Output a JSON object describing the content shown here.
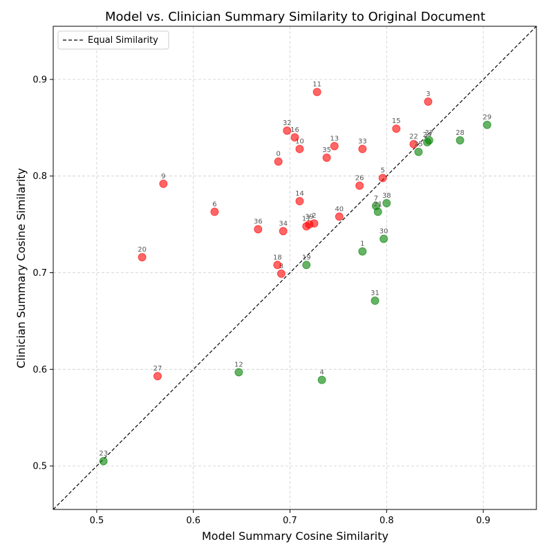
{
  "chart_data": {
    "type": "scatter",
    "title": "Model vs. Clinician Summary Similarity to Original Document",
    "xlabel": "Model Summary Cosine Similarity",
    "ylabel": "Clinician Summary Cosine Similarity",
    "xlim": [
      0.455,
      0.955
    ],
    "ylim": [
      0.455,
      0.955
    ],
    "xticks": [
      "0.5",
      "0.6",
      "0.7",
      "0.8",
      "0.9"
    ],
    "yticks": [
      "0.5",
      "0.6",
      "0.7",
      "0.8",
      "0.9"
    ],
    "grid": true,
    "legend": {
      "position": "top-left",
      "entries": [
        "Equal Similarity"
      ]
    },
    "reference_line": {
      "name": "Equal Similarity",
      "style": "dashed",
      "color": "#000000"
    },
    "colors": {
      "clinician_higher": "#ff0000",
      "model_higher": "#008000"
    },
    "points": [
      {
        "label": "0",
        "x": 0.688,
        "y": 0.815,
        "group": "red"
      },
      {
        "label": "1",
        "x": 0.775,
        "y": 0.722,
        "group": "green"
      },
      {
        "label": "2",
        "x": 0.725,
        "y": 0.751,
        "group": "red"
      },
      {
        "label": "3",
        "x": 0.843,
        "y": 0.877,
        "group": "red"
      },
      {
        "label": "4",
        "x": 0.733,
        "y": 0.589,
        "group": "green"
      },
      {
        "label": "5",
        "x": 0.796,
        "y": 0.798,
        "group": "red"
      },
      {
        "label": "6",
        "x": 0.622,
        "y": 0.763,
        "group": "red"
      },
      {
        "label": "7",
        "x": 0.789,
        "y": 0.769,
        "group": "green"
      },
      {
        "label": "8",
        "x": 0.691,
        "y": 0.699,
        "group": "red"
      },
      {
        "label": "9",
        "x": 0.569,
        "y": 0.792,
        "group": "red"
      },
      {
        "label": "10",
        "x": 0.71,
        "y": 0.828,
        "group": "red"
      },
      {
        "label": "11",
        "x": 0.728,
        "y": 0.887,
        "group": "red"
      },
      {
        "label": "12",
        "x": 0.647,
        "y": 0.597,
        "group": "green"
      },
      {
        "label": "13",
        "x": 0.746,
        "y": 0.831,
        "group": "red"
      },
      {
        "label": "14",
        "x": 0.71,
        "y": 0.774,
        "group": "red"
      },
      {
        "label": "15",
        "x": 0.81,
        "y": 0.849,
        "group": "red"
      },
      {
        "label": "16",
        "x": 0.705,
        "y": 0.84,
        "group": "red"
      },
      {
        "label": "17",
        "x": 0.717,
        "y": 0.748,
        "group": "red"
      },
      {
        "label": "18",
        "x": 0.687,
        "y": 0.708,
        "group": "red"
      },
      {
        "label": "19",
        "x": 0.717,
        "y": 0.708,
        "group": "green"
      },
      {
        "label": "20",
        "x": 0.547,
        "y": 0.716,
        "group": "red"
      },
      {
        "label": "21",
        "x": 0.791,
        "y": 0.763,
        "group": "green"
      },
      {
        "label": "22",
        "x": 0.828,
        "y": 0.833,
        "group": "red"
      },
      {
        "label": "23",
        "x": 0.507,
        "y": 0.505,
        "group": "green"
      },
      {
        "label": "24",
        "x": 0.842,
        "y": 0.835,
        "group": "green"
      },
      {
        "label": "25",
        "x": 0.833,
        "y": 0.825,
        "group": "green"
      },
      {
        "label": "26",
        "x": 0.772,
        "y": 0.79,
        "group": "red"
      },
      {
        "label": "27",
        "x": 0.563,
        "y": 0.593,
        "group": "red"
      },
      {
        "label": "28",
        "x": 0.876,
        "y": 0.837,
        "group": "green"
      },
      {
        "label": "29",
        "x": 0.904,
        "y": 0.853,
        "group": "green"
      },
      {
        "label": "30",
        "x": 0.797,
        "y": 0.735,
        "group": "green"
      },
      {
        "label": "31",
        "x": 0.788,
        "y": 0.671,
        "group": "green"
      },
      {
        "label": "32",
        "x": 0.697,
        "y": 0.847,
        "group": "red"
      },
      {
        "label": "33",
        "x": 0.775,
        "y": 0.828,
        "group": "red"
      },
      {
        "label": "34",
        "x": 0.693,
        "y": 0.743,
        "group": "red"
      },
      {
        "label": "35",
        "x": 0.738,
        "y": 0.819,
        "group": "red"
      },
      {
        "label": "36",
        "x": 0.667,
        "y": 0.745,
        "group": "red"
      },
      {
        "label": "37",
        "x": 0.844,
        "y": 0.837,
        "group": "green"
      },
      {
        "label": "38",
        "x": 0.8,
        "y": 0.772,
        "group": "green"
      },
      {
        "label": "39",
        "x": 0.72,
        "y": 0.75,
        "group": "red"
      },
      {
        "label": "40",
        "x": 0.751,
        "y": 0.758,
        "group": "red"
      }
    ]
  }
}
